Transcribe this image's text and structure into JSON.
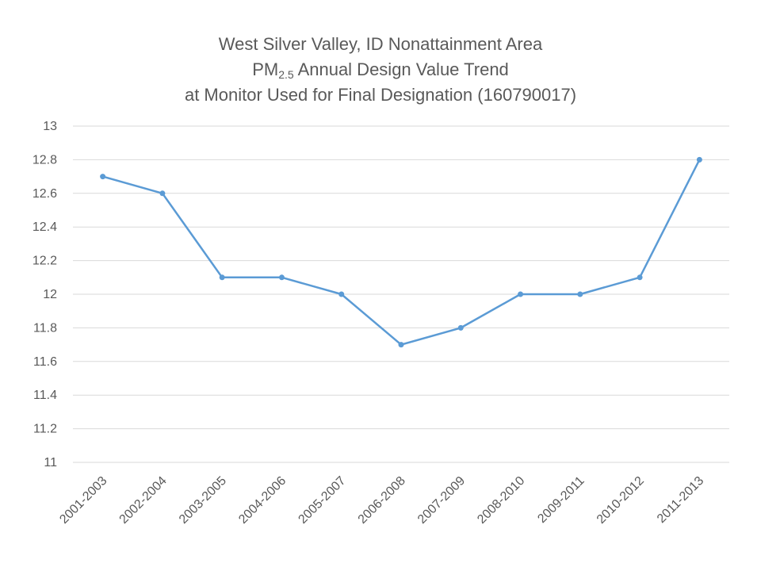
{
  "chart_data": {
    "type": "line",
    "title": {
      "line1": "West Silver Valley, ID Nonattainment Area",
      "line2_prefix": "PM",
      "line2_subscript": "2.5",
      "line2_suffix": " Annual Design Value Trend",
      "line3": "at Monitor Used for Final Designation (160790017)"
    },
    "xlabel": "",
    "ylabel": "",
    "categories": [
      "2001-2003",
      "2002-2004",
      "2003-2005",
      "2004-2006",
      "2005-2007",
      "2006-2008",
      "2007-2009",
      "2008-2010",
      "2009-2011",
      "2010-2012",
      "2011-2013"
    ],
    "series": [
      {
        "values": [
          12.7,
          12.6,
          12.1,
          12.1,
          12.0,
          11.7,
          11.8,
          12.0,
          12.0,
          12.1,
          12.8
        ],
        "color": "#5b9bd5"
      }
    ],
    "ylim": [
      11,
      13
    ],
    "y_ticks": [
      {
        "value": 11,
        "label": "11"
      },
      {
        "value": 11.2,
        "label": "11.2"
      },
      {
        "value": 11.4,
        "label": "11.4"
      },
      {
        "value": 11.6,
        "label": "11.6"
      },
      {
        "value": 11.8,
        "label": "11.8"
      },
      {
        "value": 12,
        "label": "12"
      },
      {
        "value": 12.2,
        "label": "12.2"
      },
      {
        "value": 12.4,
        "label": "12.4"
      },
      {
        "value": 12.6,
        "label": "12.6"
      },
      {
        "value": 12.8,
        "label": "12.8"
      },
      {
        "value": 13,
        "label": "13"
      }
    ],
    "grid": true,
    "legend": "none",
    "gridline_color": "#d9d9d9"
  }
}
